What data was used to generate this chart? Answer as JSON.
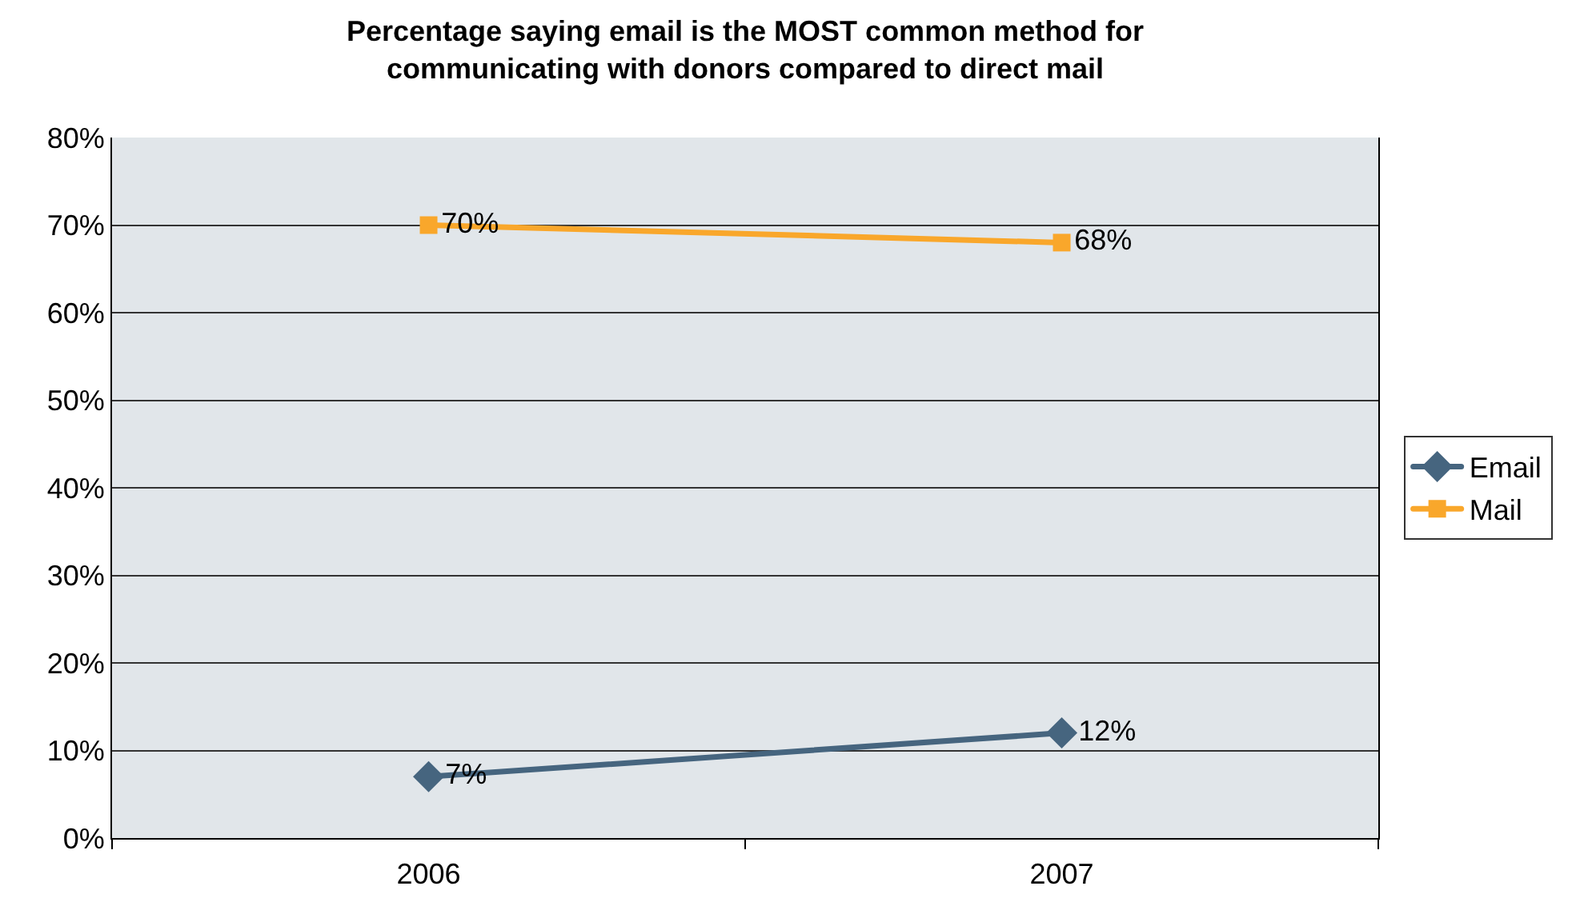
{
  "chart_data": {
    "type": "line",
    "title": "Percentage saying email is the MOST common method for\ncommunicating with donors compared to direct mail",
    "categories": [
      "2006",
      "2007"
    ],
    "series": [
      {
        "name": "Email",
        "color": "#46657f",
        "marker": "diamond",
        "values": [
          7,
          12
        ],
        "value_labels": [
          "7%",
          "12%"
        ]
      },
      {
        "name": "Mail",
        "color": "#f9a72b",
        "marker": "square",
        "values": [
          70,
          68
        ],
        "value_labels": [
          "70%",
          "68%"
        ]
      }
    ],
    "ylim": [
      0,
      80
    ],
    "yticks": [
      {
        "value": 0,
        "label": "0%"
      },
      {
        "value": 10,
        "label": "10%"
      },
      {
        "value": 20,
        "label": "20%"
      },
      {
        "value": 30,
        "label": "30%"
      },
      {
        "value": 40,
        "label": "40%"
      },
      {
        "value": 50,
        "label": "50%"
      },
      {
        "value": 60,
        "label": "60%"
      },
      {
        "value": 70,
        "label": "70%"
      },
      {
        "value": 80,
        "label": "80%"
      }
    ],
    "grid": "y",
    "legend": "right",
    "line_style": "solid"
  }
}
